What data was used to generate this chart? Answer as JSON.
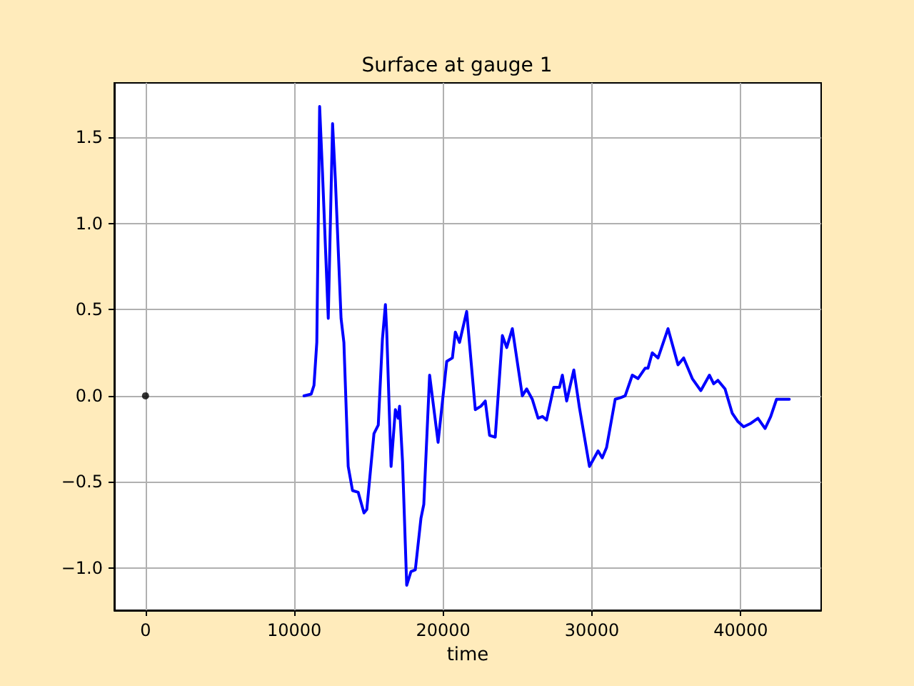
{
  "chart_data": {
    "type": "line",
    "title": "Surface at gauge 1",
    "xlabel": "time",
    "xlim": [
      -2100,
      45400
    ],
    "ylim": [
      -1.245,
      1.817
    ],
    "xticks": [
      0,
      10000,
      20000,
      30000,
      40000
    ],
    "yticks": [
      {
        "value": -1,
        "label": "−1.0"
      },
      {
        "value": -0.5,
        "label": "−0.5"
      },
      {
        "value": 0,
        "label": "0.0"
      },
      {
        "value": 0.5,
        "label": "0.5"
      },
      {
        "value": 1,
        "label": "1.0"
      },
      {
        "value": 1.5,
        "label": "1.5"
      }
    ],
    "grid": true,
    "marker": "none",
    "line_style": "solid",
    "series": [
      {
        "color": "#0000ff",
        "x": [
          10650,
          11130,
          11320,
          11510,
          11700,
          11890,
          12280,
          12570,
          12760,
          13140,
          13330,
          13620,
          13910,
          14290,
          14680,
          14870,
          15350,
          15640,
          15920,
          16120,
          16210,
          16500,
          16790,
          16980,
          17070,
          17270,
          17550,
          17840,
          18130,
          18510,
          18700,
          19090,
          19660,
          20240,
          20620,
          20820,
          21100,
          21580,
          22160,
          22540,
          22830,
          23120,
          23500,
          23980,
          24270,
          24650,
          25320,
          25610,
          25990,
          26380,
          26670,
          26950,
          27430,
          27820,
          28010,
          28300,
          28780,
          29160,
          29830,
          30410,
          30690,
          30980,
          31560,
          31940,
          32230,
          32710,
          33090,
          33570,
          33760,
          34050,
          34440,
          35110,
          35780,
          36160,
          36740,
          37310,
          37890,
          38180,
          38460,
          38940,
          39420,
          39810,
          40190,
          40670,
          41150,
          41630,
          42010,
          42400,
          42780,
          43260
        ],
        "values": [
          0,
          0.01,
          0.06,
          0.31,
          1.68,
          1.3,
          0.45,
          1.58,
          1.25,
          0.45,
          0.31,
          -0.41,
          -0.55,
          -0.56,
          -0.68,
          -0.66,
          -0.22,
          -0.17,
          0.33,
          0.53,
          0.37,
          -0.41,
          -0.08,
          -0.13,
          -0.06,
          -0.38,
          -1.1,
          -1.02,
          -1.01,
          -0.71,
          -0.63,
          0.12,
          -0.27,
          0.2,
          0.22,
          0.37,
          0.31,
          0.49,
          -0.08,
          -0.06,
          -0.03,
          -0.23,
          -0.24,
          0.35,
          0.28,
          0.39,
          0,
          0.04,
          -0.02,
          -0.13,
          -0.12,
          -0.14,
          0.05,
          0.05,
          0.12,
          -0.03,
          0.15,
          -0.07,
          -0.41,
          -0.32,
          -0.36,
          -0.3,
          -0.02,
          -0.01,
          0,
          0.12,
          0.1,
          0.16,
          0.16,
          0.25,
          0.22,
          0.39,
          0.18,
          0.22,
          0.1,
          0.03,
          0.12,
          0.07,
          0.09,
          0.04,
          -0.1,
          -0.15,
          -0.18,
          -0.16,
          -0.13,
          -0.19,
          -0.12,
          -0.02,
          -0.02,
          -0.02
        ]
      },
      {
        "type": "scatter",
        "color": "#000000",
        "marker": "circle",
        "x": [
          0
        ],
        "values": [
          0
        ]
      }
    ]
  }
}
